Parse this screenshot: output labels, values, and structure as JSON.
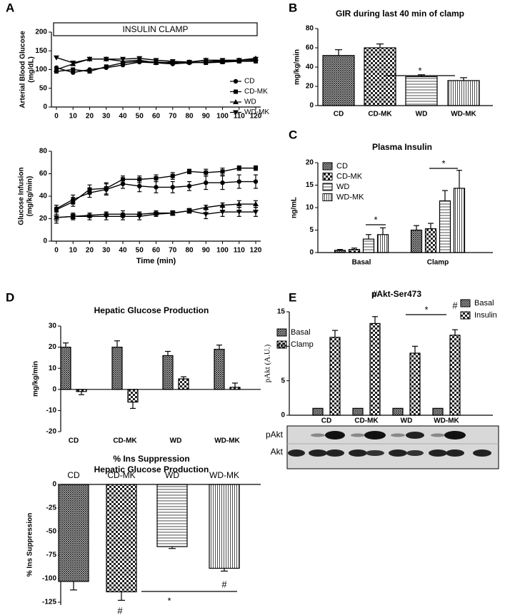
{
  "chart_data": [
    {
      "type": "line",
      "panel": "A",
      "banner": "INSULIN CLAMP",
      "y_label": [
        "Arterial Blood Glucose",
        "(mg/dL)"
      ],
      "x": [
        0,
        10,
        20,
        30,
        40,
        50,
        60,
        70,
        80,
        90,
        100,
        110,
        120
      ],
      "xlim": [
        -3,
        123
      ],
      "xticks": [
        0,
        10,
        20,
        30,
        40,
        50,
        60,
        70,
        80,
        90,
        100,
        110,
        120
      ],
      "ylim": [
        0,
        200
      ],
      "yticks": [
        0,
        50,
        100,
        150,
        200
      ],
      "legend": "lower right",
      "series": [
        {
          "name": "CD",
          "marker": "circle",
          "color": "#000000",
          "values": [
            105,
            92,
            100,
            105,
            112,
            120,
            118,
            115,
            118,
            120,
            122,
            122,
            125
          ]
        },
        {
          "name": "CD-MK",
          "marker": "square",
          "color": "#000000",
          "values": [
            95,
            100,
            95,
            108,
            118,
            122,
            120,
            118,
            120,
            118,
            120,
            122,
            122
          ]
        },
        {
          "name": "WD",
          "marker": "triangle",
          "color": "#000000",
          "values": [
            100,
            115,
            128,
            128,
            122,
            125,
            118,
            120,
            120,
            125,
            122,
            125,
            130
          ]
        },
        {
          "name": "WD-MK",
          "marker": "triangle-down",
          "color": "#000000",
          "values": [
            132,
            118,
            128,
            128,
            128,
            130,
            125,
            122,
            120,
            125,
            125,
            125,
            128
          ]
        }
      ]
    },
    {
      "type": "line",
      "y_label": [
        "Glucose Infusion",
        "(mg/kg/min)"
      ],
      "x_label": "Time (min)",
      "x": [
        0,
        10,
        20,
        30,
        40,
        50,
        60,
        70,
        80,
        90,
        100,
        110,
        120
      ],
      "xlim": [
        -3,
        123
      ],
      "xticks": [
        0,
        10,
        20,
        30,
        40,
        50,
        60,
        70,
        80,
        90,
        100,
        110,
        120
      ],
      "ylim": [
        0,
        80
      ],
      "yticks": [
        0,
        20,
        40,
        60,
        80
      ],
      "series": [
        {
          "marker": "circle",
          "color": "#000000",
          "values": [
            29,
            37,
            43,
            46,
            51,
            49,
            48,
            48,
            49,
            52,
            52,
            53,
            53
          ],
          "errors": [
            3,
            4,
            4,
            5,
            4,
            5,
            5,
            5,
            4,
            6,
            6,
            6,
            6
          ]
        },
        {
          "marker": "square",
          "color": "#000000",
          "values": [
            28,
            35,
            46,
            47,
            55,
            55,
            56,
            58,
            62,
            61,
            62,
            65,
            65
          ],
          "errors": [
            2,
            4,
            4,
            5,
            3,
            3,
            3,
            3,
            2,
            3,
            3,
            2,
            2
          ]
        },
        {
          "marker": "triangle",
          "color": "#000000",
          "values": [
            21,
            22,
            23,
            24,
            24,
            24,
            25,
            25,
            27,
            30,
            32,
            33,
            33
          ],
          "errors": [
            3,
            2,
            2,
            2,
            3,
            2,
            2,
            2,
            2,
            2,
            2,
            3,
            3
          ]
        },
        {
          "marker": "triangle-down",
          "color": "#000000",
          "values": [
            21,
            22,
            22,
            22,
            22,
            22,
            24,
            25,
            27,
            24,
            26,
            26,
            26
          ],
          "errors": [
            5,
            3,
            3,
            3,
            3,
            3,
            2,
            2,
            2,
            4,
            4,
            4,
            4
          ]
        }
      ]
    },
    {
      "type": "bar",
      "panel": "B",
      "title": "GIR during last 40 min of clamp",
      "y_label": "mg/kg/min",
      "categories": [
        "CD",
        "CD-MK",
        "WD",
        "WD-MK"
      ],
      "values": [
        52,
        60,
        30,
        26
      ],
      "errors": [
        6,
        4,
        2,
        3
      ],
      "patterns": [
        "crosshatch",
        "checker",
        "horizontal",
        "vertical"
      ],
      "ylim": [
        0,
        80
      ],
      "yticks": [
        0,
        20,
        40,
        60,
        80
      ],
      "annotations": [
        "*"
      ]
    },
    {
      "type": "grouped_bar",
      "panel": "C",
      "title": "Plasma Insulin",
      "y_label": "ng/mL",
      "categories": [
        "Basal",
        "Clamp"
      ],
      "ylim": [
        0,
        20
      ],
      "yticks": [
        0,
        5,
        10,
        15,
        20
      ],
      "legend": "upper left",
      "series": [
        {
          "name": "CD",
          "pattern": "crosshatch",
          "values": [
            0.5,
            5
          ],
          "errors": [
            0.2,
            1
          ]
        },
        {
          "name": "CD-MK",
          "pattern": "checker",
          "values": [
            0.7,
            5.3
          ],
          "errors": [
            0.3,
            1.2
          ]
        },
        {
          "name": "WD",
          "pattern": "horizontal",
          "values": [
            3,
            11.5
          ],
          "errors": [
            1,
            2.3
          ]
        },
        {
          "name": "WD-MK",
          "pattern": "vertical",
          "values": [
            4,
            14.3
          ],
          "errors": [
            1.5,
            4
          ]
        }
      ],
      "annotations": [
        "*",
        "*"
      ]
    },
    {
      "type": "grouped_bar",
      "panel": "D",
      "title": "Hepatic Glucose Production",
      "y_label": "mg/kg/min",
      "categories": [
        "CD",
        "CD-MK",
        "WD",
        "WD-MK"
      ],
      "ylim": [
        -20,
        30
      ],
      "yticks": [
        -20,
        -10,
        0,
        10,
        20,
        30
      ],
      "legend": "right",
      "series": [
        {
          "name": "Basal",
          "pattern": "crosshatch",
          "values": [
            20,
            20,
            16,
            19
          ],
          "errors": [
            2,
            3,
            2,
            2
          ]
        },
        {
          "name": "Clamp",
          "pattern": "checker",
          "values": [
            -1,
            -6,
            5,
            1
          ],
          "errors": [
            1.5,
            3,
            1,
            2
          ]
        }
      ]
    },
    {
      "type": "bar",
      "title": [
        "% Ins Suppression",
        "Hepatic Glucose Production"
      ],
      "y_label": "% Ins Suppression",
      "categories": [
        "CD",
        "CD-MK",
        "WD",
        "WD-MK"
      ],
      "values": [
        -103,
        -114,
        -66,
        -89
      ],
      "errors": [
        9,
        9,
        2,
        3
      ],
      "patterns": [
        "crosshatch",
        "checker",
        "horizontal",
        "vertical"
      ],
      "ylim": [
        -128,
        0
      ],
      "yticks": [
        -125,
        -100,
        -75,
        -50,
        -25,
        0
      ],
      "annotations": [
        "#",
        "#",
        "*"
      ]
    },
    {
      "type": "grouped_bar",
      "panel": "E",
      "title": "pAkt-Ser473",
      "y_label": "pAkt (A.U.)",
      "categories": [
        "CD",
        "CD-MK",
        "WD",
        "WD-MK"
      ],
      "ylim": [
        0,
        15
      ],
      "yticks": [
        0,
        5,
        10,
        15
      ],
      "legend": "right",
      "series": [
        {
          "name": "Basal",
          "pattern": "crosshatch",
          "values": [
            1,
            1,
            1,
            1
          ]
        },
        {
          "name": "Insulin",
          "pattern": "checker",
          "values": [
            11.3,
            13.3,
            9,
            11.6
          ],
          "errors": [
            1,
            1,
            1,
            0.8
          ]
        }
      ],
      "annotations": [
        "#",
        "#",
        "*"
      ],
      "blot_labels": [
        "pAkt",
        "Akt"
      ]
    }
  ]
}
